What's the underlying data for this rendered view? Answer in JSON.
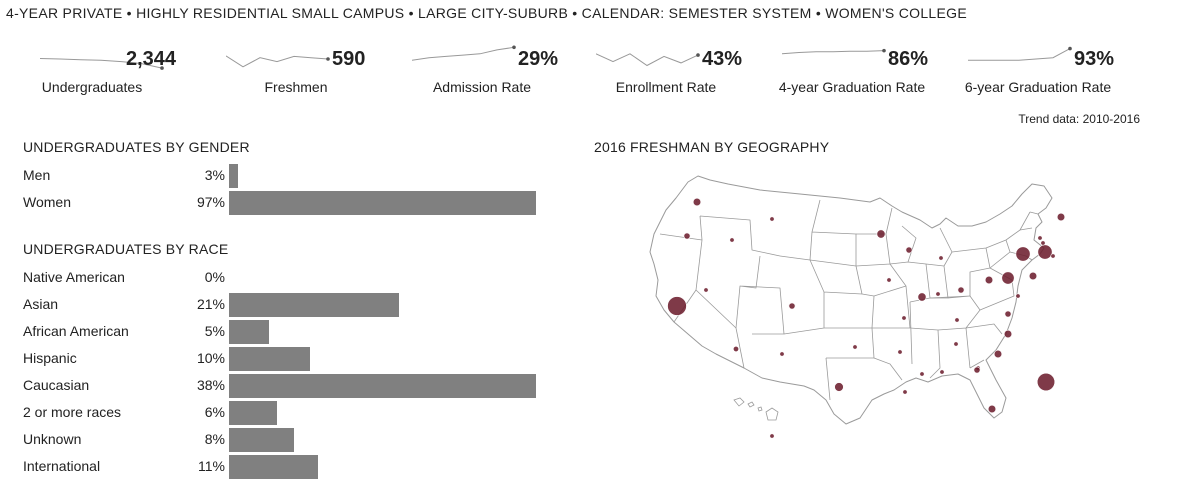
{
  "header": {
    "summary": "4-YEAR PRIVATE • HIGHLY RESIDENTIAL SMALL CAMPUS • LARGE CITY-SUBURB • CALENDAR: SEMESTER SYSTEM • WOMEN'S COLLEGE"
  },
  "stats": [
    {
      "value": "2,344",
      "label": "Undergraduates",
      "trend": [
        0.52,
        0.5,
        0.47,
        0.45,
        0.4,
        0.32,
        0.15
      ]
    },
    {
      "value": "590",
      "label": "Freshmen",
      "trend": [
        0.62,
        0.2,
        0.55,
        0.4,
        0.6,
        0.55,
        0.5
      ]
    },
    {
      "value": "29%",
      "label": "Admission Rate",
      "trend": [
        0.45,
        0.55,
        0.6,
        0.65,
        0.7,
        0.85,
        0.95
      ]
    },
    {
      "value": "43%",
      "label": "Enrollment Rate",
      "trend": [
        0.7,
        0.4,
        0.7,
        0.25,
        0.6,
        0.35,
        0.65
      ]
    },
    {
      "value": "86%",
      "label": "4-year Graduation Rate",
      "trend": [
        0.7,
        0.75,
        0.78,
        0.78,
        0.8,
        0.8,
        0.82
      ]
    },
    {
      "value": "93%",
      "label": "6-year Graduation Rate",
      "trend": [
        0.45,
        0.45,
        0.45,
        0.45,
        0.5,
        0.55,
        0.9
      ]
    }
  ],
  "trend_note": "Trend data: 2010-2016",
  "gender_section": {
    "title": "UNDERGRADUATES BY GENDER"
  },
  "race_section": {
    "title": "UNDERGRADUATES BY RACE"
  },
  "map_section": {
    "title": "2016 FRESHMAN BY GEOGRAPHY"
  },
  "colors": {
    "bar": "#808080",
    "bubble": "#6d1f2f",
    "spark": "#999999",
    "map_stroke": "#9a9a9a"
  },
  "chart_data": [
    {
      "type": "bar",
      "title": "UNDERGRADUATES BY GENDER",
      "orientation": "horizontal",
      "categories": [
        "Men",
        "Women"
      ],
      "values": [
        3,
        97
      ],
      "value_labels": [
        "3%",
        "97%"
      ],
      "xlim": [
        0,
        97
      ]
    },
    {
      "type": "bar",
      "title": "UNDERGRADUATES BY RACE",
      "orientation": "horizontal",
      "categories": [
        "Native American",
        "Asian",
        "African American",
        "Hispanic",
        "Caucasian",
        "2 or more races",
        "Unknown",
        "International"
      ],
      "values": [
        0,
        21,
        5,
        10,
        38,
        6,
        8,
        11
      ],
      "value_labels": [
        "0%",
        "21%",
        "5%",
        "10%",
        "38%",
        "6%",
        "8%",
        "11%"
      ],
      "xlim": [
        0,
        38
      ]
    },
    {
      "type": "scatter",
      "title": "2016 FRESHMAN BY GEOGRAPHY",
      "description_units": "relative bubble size by state",
      "points": [
        {
          "state": "WA",
          "size": 3
        },
        {
          "state": "OR",
          "size": 2
        },
        {
          "state": "CA",
          "size": 14
        },
        {
          "state": "NV",
          "size": 1
        },
        {
          "state": "ID",
          "size": 1
        },
        {
          "state": "MT",
          "size": 1
        },
        {
          "state": "CO",
          "size": 2
        },
        {
          "state": "AZ",
          "size": 1.5
        },
        {
          "state": "NM",
          "size": 1
        },
        {
          "state": "TX",
          "size": 4
        },
        {
          "state": "OK",
          "size": 1
        },
        {
          "state": "MN",
          "size": 3.5
        },
        {
          "state": "WI",
          "size": 2
        },
        {
          "state": "IA",
          "size": 1
        },
        {
          "state": "MO",
          "size": 1
        },
        {
          "state": "IL",
          "size": 3.5
        },
        {
          "state": "IN",
          "size": 1
        },
        {
          "state": "MI",
          "size": 1
        },
        {
          "state": "OH",
          "size": 2
        },
        {
          "state": "PA",
          "size": 3
        },
        {
          "state": "NY",
          "size": 8
        },
        {
          "state": "MA",
          "size": 8
        },
        {
          "state": "VT",
          "size": 1
        },
        {
          "state": "NH",
          "size": 1
        },
        {
          "state": "ME",
          "size": 3
        },
        {
          "state": "CT",
          "size": 3
        },
        {
          "state": "RI",
          "size": 1
        },
        {
          "state": "NJ",
          "size": 6
        },
        {
          "state": "DE",
          "size": 1
        },
        {
          "state": "MD",
          "size": 2
        },
        {
          "state": "VA",
          "size": 3
        },
        {
          "state": "NC",
          "size": 3
        },
        {
          "state": "SC",
          "size": 1
        },
        {
          "state": "GA",
          "size": 2
        },
        {
          "state": "TN",
          "size": 1
        },
        {
          "state": "KY",
          "size": 1
        },
        {
          "state": "AL",
          "size": 1
        },
        {
          "state": "MS",
          "size": 1
        },
        {
          "state": "AR",
          "size": 1
        },
        {
          "state": "LA",
          "size": 1
        },
        {
          "state": "FL",
          "size": 12
        },
        {
          "state": "FL-S",
          "size": 3
        },
        {
          "state": "HI",
          "size": 1
        }
      ]
    }
  ]
}
